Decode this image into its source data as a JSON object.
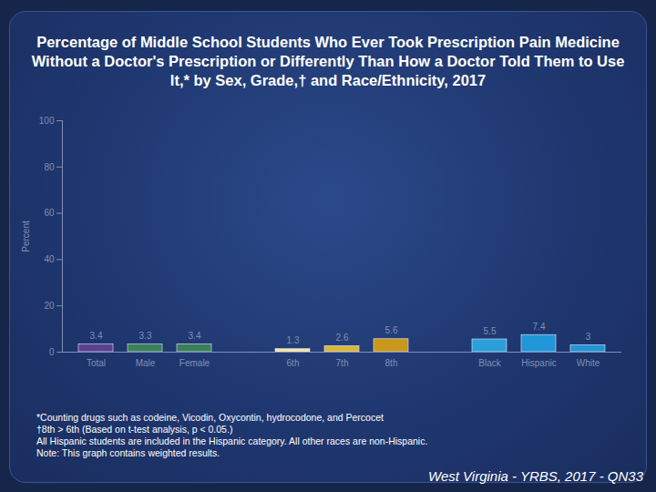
{
  "chart_data": {
    "type": "bar",
    "title": "Percentage of Middle School Students Who Ever Took Prescription Pain Medicine Without a Doctor's Prescription or Differently Than How a Doctor Told Them to Use It,* by Sex, Grade,† and Race/Ethnicity, 2017",
    "y_label": "Percent",
    "categories": [
      "Total",
      "Male",
      "Female",
      null,
      "6th",
      "7th",
      "8th",
      null,
      "Black",
      "Hispanic",
      "White"
    ],
    "values": [
      3.4,
      3.3,
      3.4,
      null,
      1.3,
      2.6,
      5.6,
      null,
      5.5,
      7.4,
      3.0
    ],
    "colors": [
      "#5b4290",
      "#3b7f5c",
      "#3b7f5c",
      null,
      "#f3e6a6",
      "#d8b43c",
      "#c8971c",
      null,
      "#2c9fda",
      "#2196d8",
      "#2394d4"
    ],
    "ylim": [
      0,
      100
    ],
    "yticks": [
      0,
      20,
      40,
      60,
      80,
      100
    ],
    "grid": false,
    "data_labels": true,
    "annotations": [
      "*Counting drugs such as codeine, Vicodin, Oxycontin, hydrocodone, and Percocet",
      "†8th > 6th (Based on t-test analysis, p < 0.05.)",
      "All Hispanic students are included in the Hispanic category.  All other races are non-Hispanic.",
      "Note: This graph contains weighted results."
    ],
    "source": "West Virginia - YRBS, 2017 - QN33"
  }
}
